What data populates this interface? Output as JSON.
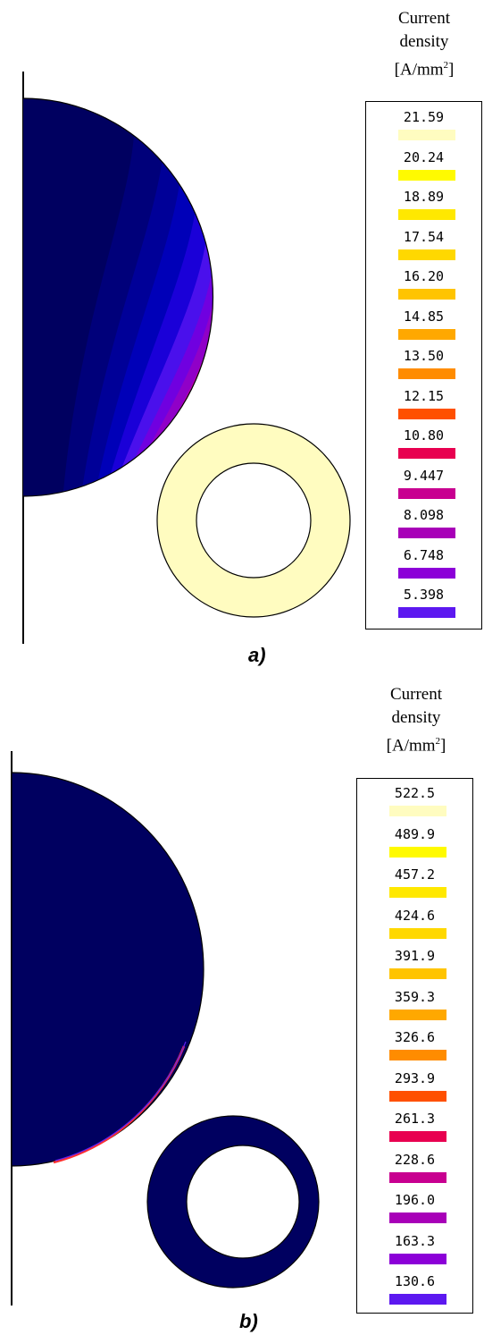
{
  "panels": [
    {
      "caption": "a)",
      "legend": {
        "title_line1": "Current",
        "title_line2": "density",
        "title_line3_pre": "[A/mm",
        "title_line3_sup": "2",
        "title_line3_post": "]",
        "items": [
          {
            "value": "21.59",
            "color": "#fffcc0"
          },
          {
            "value": "20.24",
            "color": "#fffa00"
          },
          {
            "value": "18.89",
            "color": "#ffe800"
          },
          {
            "value": "17.54",
            "color": "#ffd800"
          },
          {
            "value": "16.20",
            "color": "#ffc400"
          },
          {
            "value": "14.85",
            "color": "#ffa800"
          },
          {
            "value": "13.50",
            "color": "#ff8c00"
          },
          {
            "value": "12.15",
            "color": "#ff5000"
          },
          {
            "value": "10.80",
            "color": "#e80050"
          },
          {
            "value": "9.447",
            "color": "#c80090"
          },
          {
            "value": "8.098",
            "color": "#a800b8"
          },
          {
            "value": "6.748",
            "color": "#8c00d8"
          },
          {
            "value": "5.398",
            "color": "#5c18f0"
          }
        ]
      },
      "ring_color": "#fffcc0"
    },
    {
      "caption": "b)",
      "legend": {
        "title_line1": "Current",
        "title_line2": "density",
        "title_line3_pre": "[A/mm",
        "title_line3_sup": "2",
        "title_line3_post": "]",
        "items": [
          {
            "value": "522.5",
            "color": "#fffcc0"
          },
          {
            "value": "489.9",
            "color": "#fffa00"
          },
          {
            "value": "457.2",
            "color": "#ffe800"
          },
          {
            "value": "424.6",
            "color": "#ffd800"
          },
          {
            "value": "391.9",
            "color": "#ffc400"
          },
          {
            "value": "359.3",
            "color": "#ffa800"
          },
          {
            "value": "326.6",
            "color": "#ff8c00"
          },
          {
            "value": "293.9",
            "color": "#ff5000"
          },
          {
            "value": "261.3",
            "color": "#e80050"
          },
          {
            "value": "228.6",
            "color": "#c80090"
          },
          {
            "value": "196.0",
            "color": "#a800b8"
          },
          {
            "value": "163.3",
            "color": "#8c00d8"
          },
          {
            "value": "130.6",
            "color": "#5c18f0"
          }
        ]
      },
      "ring_color": "#000060"
    }
  ],
  "colors": {
    "conductor_base": "#000060",
    "axis_line": "#000000"
  }
}
